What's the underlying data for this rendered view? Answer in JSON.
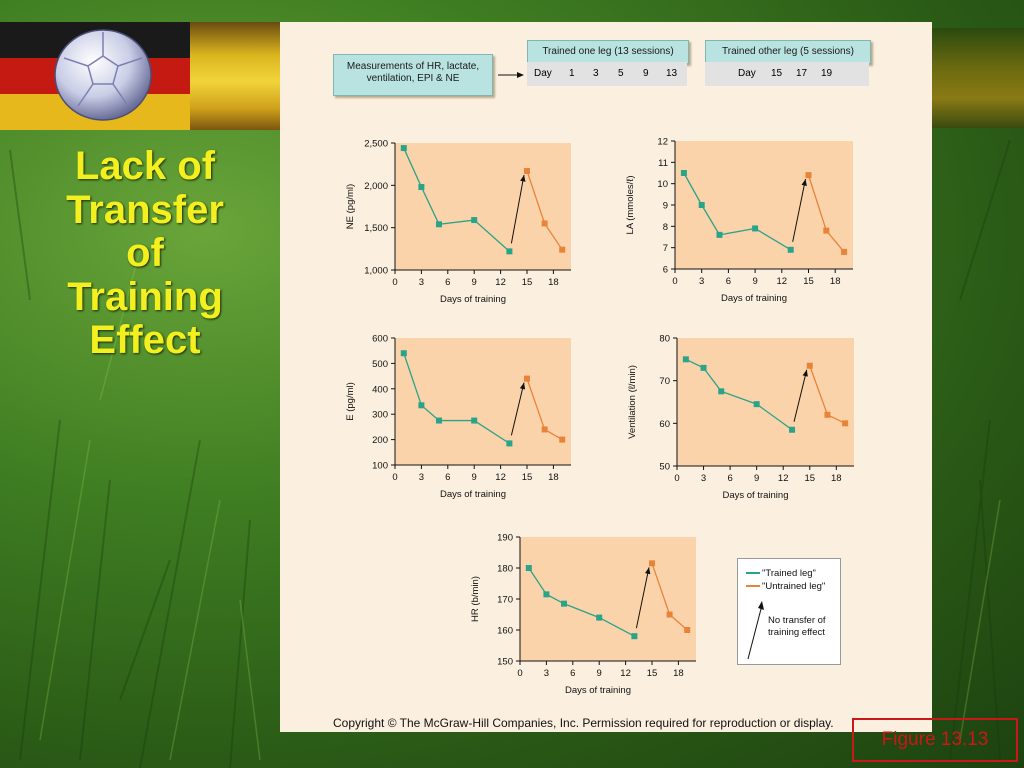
{
  "slide": {
    "title_lines": [
      "Lack of",
      "Transfer",
      "of",
      "Training",
      "Effect"
    ],
    "copyright": "Copyright © The McGraw-Hill Companies, Inc. Permission required for reproduction or display.",
    "figure_label": "Figure 13.13"
  },
  "header": {
    "measurements": "Measurements of HR, lactate, ventilation, EPI & NE",
    "trained_one_title": "Trained one leg (13 sessions)",
    "trained_one_days": [
      "Day",
      "1",
      "3",
      "5",
      "9",
      "13"
    ],
    "trained_other_title": "Trained other leg (5 sessions)",
    "trained_other_days": [
      "Day",
      "15",
      "17",
      "19"
    ]
  },
  "legend": {
    "trained": "\"Trained leg\"",
    "untrained": "\"Untrained leg\"",
    "note": "No transfer of training effect"
  },
  "colors": {
    "trained": "#2aa389",
    "untrained": "#e8843a",
    "plot_bg": "#fbd3aa"
  },
  "chart_data": [
    {
      "type": "line",
      "ylabel": "NE (pg/ml)",
      "xlabel": "Days of training",
      "xlim": [
        0,
        20
      ],
      "ylim": [
        1000,
        2500
      ],
      "xticks": [
        "0",
        "3",
        "6",
        "9",
        "12",
        "15",
        "18"
      ],
      "yticks": [
        "1,000",
        "1,500",
        "2,000",
        "2,500"
      ],
      "series": [
        {
          "name": "\"Trained leg\"",
          "x": [
            1,
            3,
            5,
            9,
            13
          ],
          "y": [
            2440,
            1980,
            1540,
            1590,
            1220
          ]
        },
        {
          "name": "\"Untrained leg\"",
          "x": [
            15,
            17,
            19
          ],
          "y": [
            2170,
            1550,
            1240
          ]
        }
      ]
    },
    {
      "type": "line",
      "ylabel": "LA (mmoles/ℓ)",
      "xlabel": "Days of training",
      "xlim": [
        0,
        20
      ],
      "ylim": [
        6,
        12
      ],
      "xticks": [
        "0",
        "3",
        "6",
        "9",
        "12",
        "15",
        "18"
      ],
      "yticks": [
        "6",
        "7",
        "8",
        "9",
        "10",
        "11",
        "12"
      ],
      "series": [
        {
          "name": "\"Trained leg\"",
          "x": [
            1,
            3,
            5,
            9,
            13
          ],
          "y": [
            10.5,
            9.0,
            7.6,
            7.9,
            6.9
          ]
        },
        {
          "name": "\"Untrained leg\"",
          "x": [
            15,
            17,
            19
          ],
          "y": [
            10.4,
            7.8,
            6.8
          ]
        }
      ]
    },
    {
      "type": "line",
      "ylabel": "E (pg/ml)",
      "xlabel": "Days of training",
      "xlim": [
        0,
        20
      ],
      "ylim": [
        100,
        600
      ],
      "xticks": [
        "0",
        "3",
        "6",
        "9",
        "12",
        "15",
        "18"
      ],
      "yticks": [
        "100",
        "200",
        "300",
        "400",
        "500",
        "600"
      ],
      "series": [
        {
          "name": "\"Trained leg\"",
          "x": [
            1,
            3,
            5,
            9,
            13
          ],
          "y": [
            540,
            335,
            275,
            275,
            185
          ]
        },
        {
          "name": "\"Untrained leg\"",
          "x": [
            15,
            17,
            19
          ],
          "y": [
            440,
            240,
            200
          ]
        }
      ]
    },
    {
      "type": "line",
      "ylabel": "Ventilation (ℓ/min)",
      "xlabel": "Days of training",
      "xlim": [
        0,
        20
      ],
      "ylim": [
        50,
        80
      ],
      "xticks": [
        "0",
        "3",
        "6",
        "9",
        "12",
        "15",
        "18"
      ],
      "yticks": [
        "50",
        "60",
        "70",
        "80"
      ],
      "series": [
        {
          "name": "\"Trained leg\"",
          "x": [
            1,
            3,
            5,
            9,
            13
          ],
          "y": [
            75,
            73,
            67.5,
            64.5,
            58.5
          ]
        },
        {
          "name": "\"Untrained leg\"",
          "x": [
            15,
            17,
            19
          ],
          "y": [
            73.5,
            62,
            60
          ]
        }
      ]
    },
    {
      "type": "line",
      "ylabel": "HR (b/min)",
      "xlabel": "Days of training",
      "xlim": [
        0,
        20
      ],
      "ylim": [
        150,
        190
      ],
      "xticks": [
        "0",
        "3",
        "6",
        "9",
        "12",
        "15",
        "18"
      ],
      "yticks": [
        "150",
        "160",
        "170",
        "180",
        "190"
      ],
      "series": [
        {
          "name": "\"Trained leg\"",
          "x": [
            1,
            3,
            5,
            9,
            13
          ],
          "y": [
            180,
            171.5,
            168.5,
            164,
            158
          ]
        },
        {
          "name": "\"Untrained leg\"",
          "x": [
            15,
            17,
            19
          ],
          "y": [
            181.5,
            165,
            160
          ]
        }
      ]
    }
  ]
}
